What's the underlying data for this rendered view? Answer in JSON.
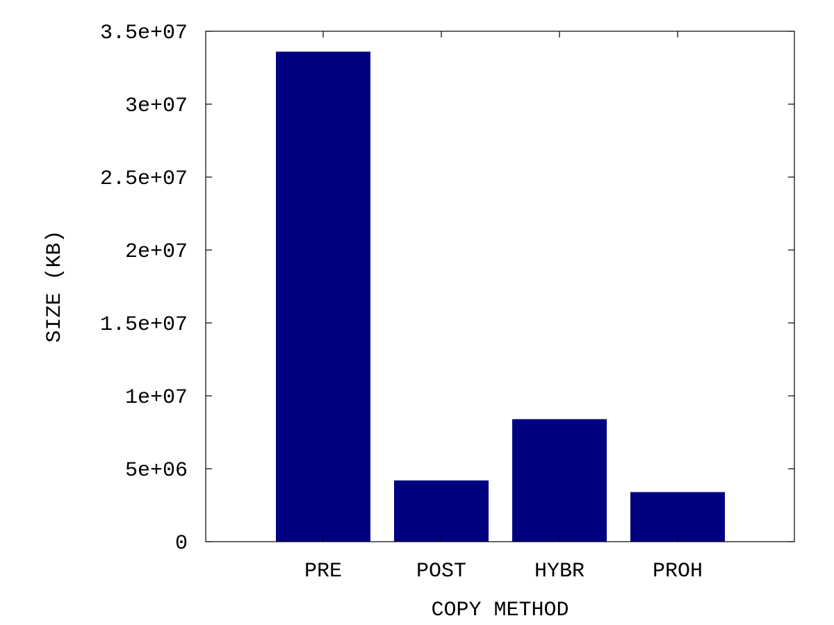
{
  "chart_data": {
    "type": "bar",
    "categories": [
      "PRE",
      "POST",
      "HYBR",
      "PROH"
    ],
    "values": [
      33600000,
      4200000,
      8400000,
      3400000
    ],
    "xlabel": "COPY METHOD",
    "ylabel": "SIZE (KB)",
    "ylim": [
      0,
      35000000
    ],
    "yticks": [
      0,
      5000000,
      10000000,
      15000000,
      20000000,
      25000000,
      30000000,
      35000000
    ],
    "ytick_labels": [
      "0",
      "5e+06",
      "1e+07",
      "1.5e+07",
      "2e+07",
      "2.5e+07",
      "3e+07",
      "3.5e+07"
    ],
    "grid": false,
    "legend": "none",
    "bar_color": "#000080"
  }
}
